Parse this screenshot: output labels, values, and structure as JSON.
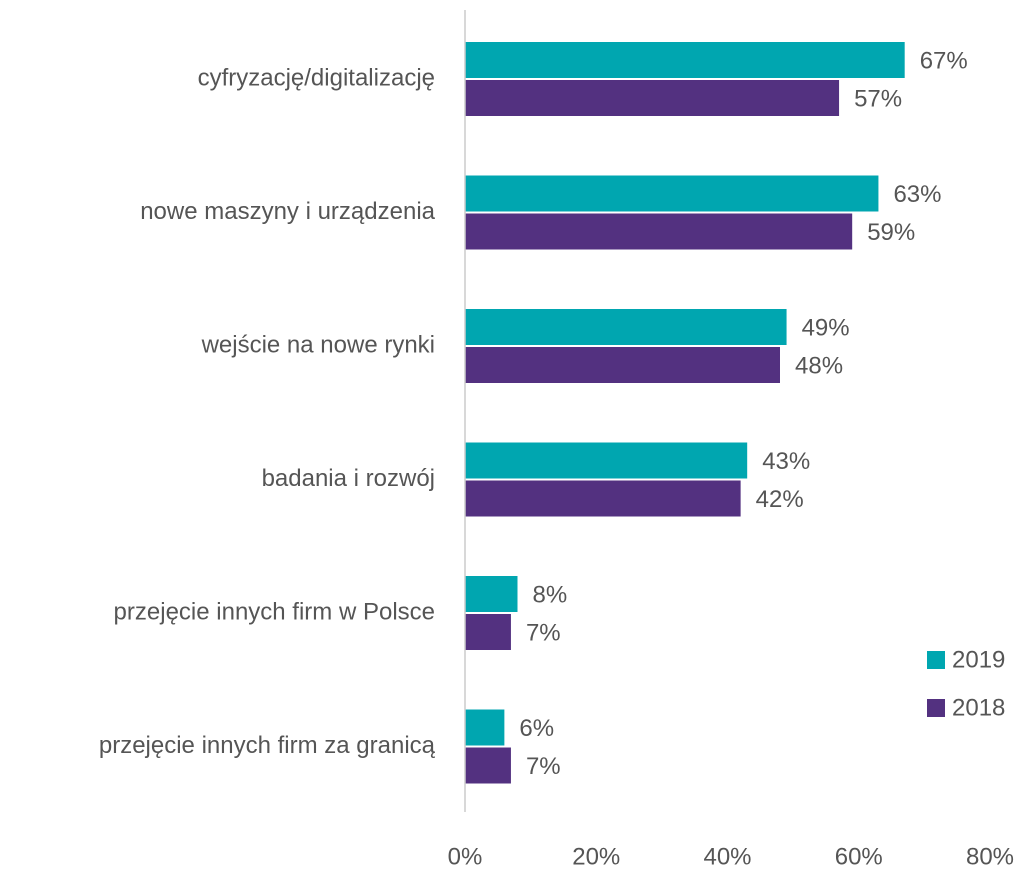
{
  "chart_data": {
    "type": "barh",
    "categories": [
      "cyfryzację/digitalizację",
      "nowe maszyny i urządzenia",
      "wejście na nowe rynki",
      "badania i rozwój",
      "przejęcie innych firm w Polsce",
      "przejęcie innych firm za granicą"
    ],
    "series": [
      {
        "name": "2019",
        "color": "#00a6b0",
        "values": [
          67,
          63,
          49,
          43,
          8,
          6
        ],
        "value_labels": [
          "67%",
          "63%",
          "49%",
          "43%",
          "8%",
          "6%"
        ]
      },
      {
        "name": "2018",
        "color": "#533180",
        "values": [
          57,
          59,
          48,
          42,
          7,
          7
        ],
        "value_labels": [
          "57%",
          "59%",
          "48%",
          "42%",
          "7%",
          "7%"
        ]
      }
    ],
    "xlim": [
      0,
      80
    ],
    "xticks": [
      {
        "value": 0,
        "label": "0%"
      },
      {
        "value": 20,
        "label": "20%"
      },
      {
        "value": 40,
        "label": "40%"
      },
      {
        "value": 60,
        "label": "60%"
      },
      {
        "value": 80,
        "label": "80%"
      }
    ],
    "legend": "right"
  }
}
